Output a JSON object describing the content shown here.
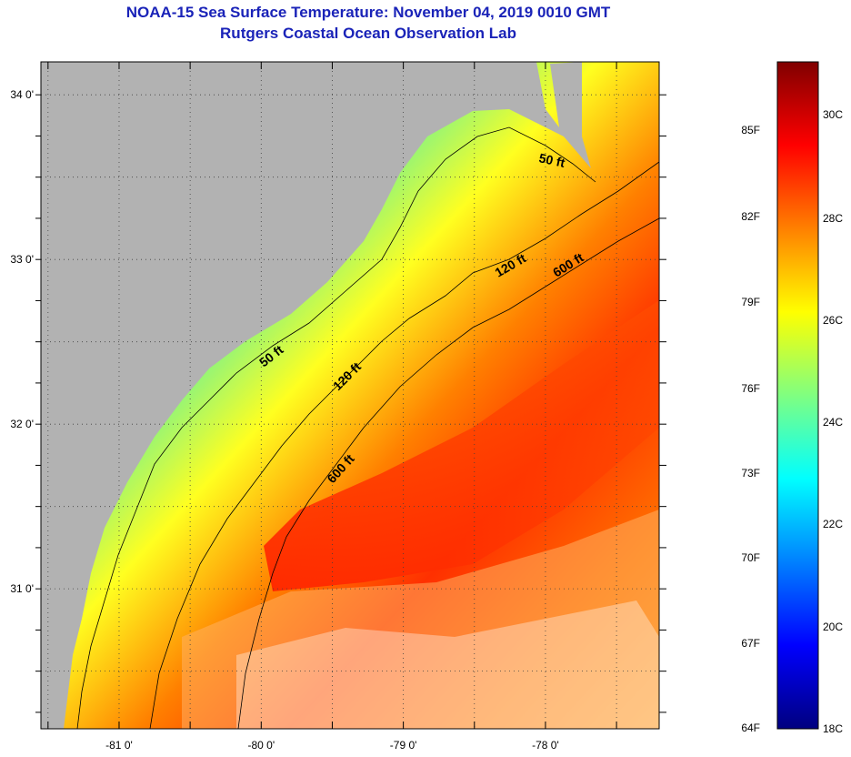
{
  "title": "NOAA-15 Sea Surface Temperature:  November 04, 2019 0010 GMT",
  "subtitle": "Rutgers Coastal Ocean Observation Lab",
  "axes": {
    "lon_ticks": [
      {
        "value": -81,
        "label": "-81 0'"
      },
      {
        "value": -80,
        "label": "-80 0'"
      },
      {
        "value": -79,
        "label": "-79 0'"
      },
      {
        "value": -78,
        "label": "-78 0'"
      }
    ],
    "lat_ticks": [
      {
        "value": 34,
        "label": "34 0'"
      },
      {
        "value": 33,
        "label": "33 0'"
      },
      {
        "value": 32,
        "label": "32 0'"
      },
      {
        "value": 31,
        "label": "31 0'"
      }
    ],
    "lon_range": [
      -81.55,
      -77.2
    ],
    "lat_range": [
      30.15,
      34.2
    ],
    "grid": "dotted"
  },
  "contours": [
    {
      "depth": "50 ft",
      "labels": [
        "50 ft",
        "50 ft"
      ]
    },
    {
      "depth": "120 ft",
      "labels": [
        "120 ft",
        "120 ft"
      ]
    },
    {
      "depth": "600 ft",
      "labels": [
        "600 ft",
        "600 ft"
      ]
    }
  ],
  "colorbar": {
    "f_labels": [
      "85F",
      "82F",
      "79F",
      "76F",
      "73F",
      "70F",
      "67F",
      "64F"
    ],
    "c_labels": [
      "30C",
      "28C",
      "26C",
      "24C",
      "22C",
      "20C",
      "18C"
    ],
    "stops": [
      "#00007f",
      "#0000ff",
      "#0080ff",
      "#00ffff",
      "#80ff80",
      "#ffff00",
      "#ff8000",
      "#ff0000",
      "#800000"
    ]
  },
  "colors": {
    "land": "#b2b2b2",
    "title": "#1a23b8"
  }
}
